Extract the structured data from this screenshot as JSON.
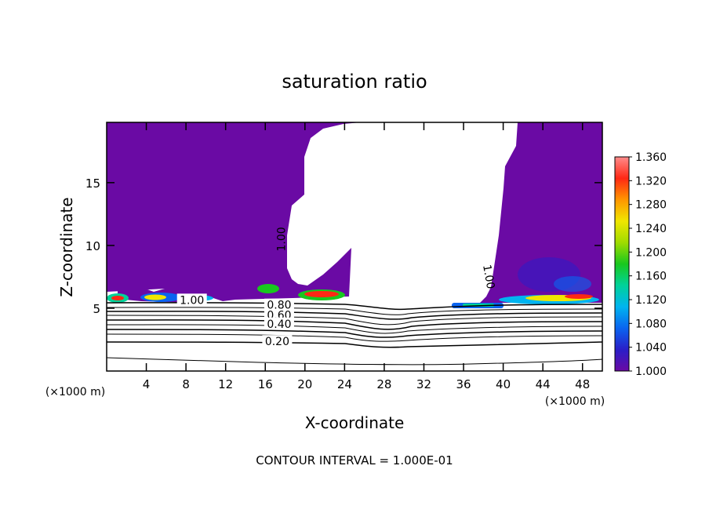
{
  "chart_data": {
    "type": "heatmap",
    "title": "saturation ratio",
    "xlabel": "X-coordinate",
    "ylabel": "Z-coordinate",
    "x_unit_note": "(×1000 m)",
    "z_unit_note": "(×1000 m)",
    "footer": "CONTOUR INTERVAL = 1.000E-01",
    "xlim": [
      0,
      50
    ],
    "ylim": [
      0,
      19.8
    ],
    "x_ticks": [
      4,
      8,
      12,
      16,
      20,
      24,
      28,
      32,
      36,
      40,
      44,
      48
    ],
    "y_ticks": [
      5,
      10,
      15
    ],
    "colorbar": {
      "min": 1.0,
      "max": 1.36,
      "tick_values": [
        1.0,
        1.04,
        1.08,
        1.12,
        1.16,
        1.2,
        1.24,
        1.28,
        1.32,
        1.36
      ],
      "tick_labels": [
        "1.000",
        "1.040",
        "1.080",
        "1.120",
        "1.160",
        "1.200",
        "1.240",
        "1.280",
        "1.320",
        "1.360"
      ]
    },
    "contour_labels": [
      {
        "text": "1.00",
        "x": 17.7,
        "z": 10.5,
        "rotate": -90
      },
      {
        "text": "1.00",
        "x": 38.5,
        "z": 7.5,
        "rotate": 80
      },
      {
        "text": "1.00",
        "x": 8.6,
        "z": 5.6,
        "rotate": 0
      },
      {
        "text": "0.80",
        "x": 17.4,
        "z": 5.2,
        "rotate": 0
      },
      {
        "text": "0.60",
        "x": 17.4,
        "z": 4.4,
        "rotate": 0
      },
      {
        "text": "0.40",
        "x": 17.4,
        "z": 3.7,
        "rotate": 0
      },
      {
        "text": "0.20",
        "x": 17.2,
        "z": 2.3,
        "rotate": 0
      }
    ]
  },
  "colors": {
    "saturated_fill": "#6a0aa4",
    "axis": "#000000",
    "colorbar_stops": [
      "#6a0aa4",
      "#2a1ec8",
      "#0a64f0",
      "#00b4f0",
      "#00d29a",
      "#19c81e",
      "#a0dc00",
      "#f0e600",
      "#ff9600",
      "#ff2814",
      "#ff8c8c"
    ]
  }
}
